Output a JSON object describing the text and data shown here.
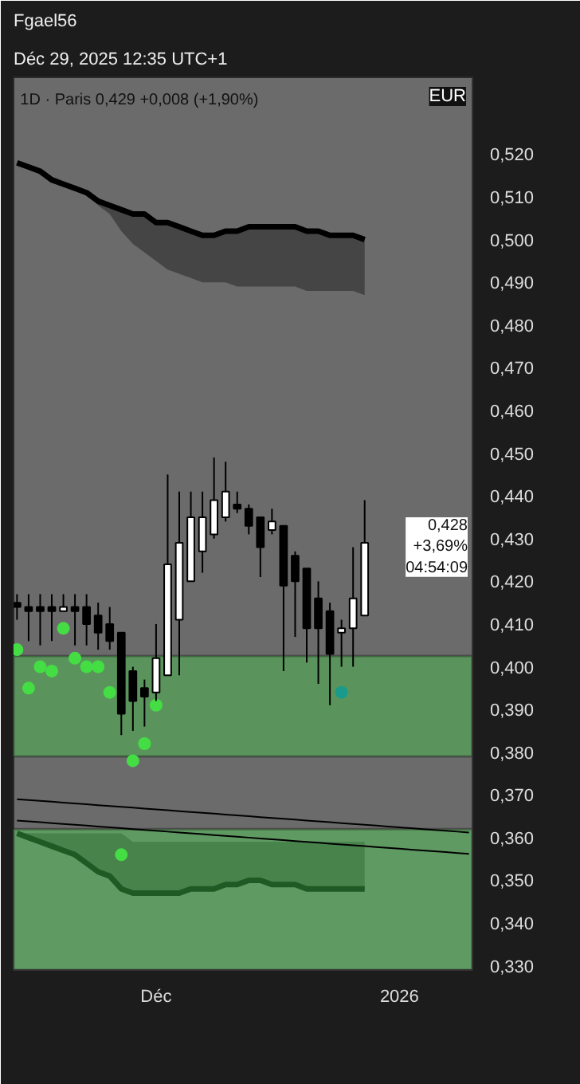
{
  "chart_data": {
    "type": "candlestick",
    "title": "Fgael56",
    "subtitle": "Déc 29, 2025 12:35 UTC+1",
    "ylabel": "EUR",
    "annotations": [
      "1D · Paris  0,429  +0,008 (+1,90%)",
      {
        "text": "0,428\n+3,69%\n04:54:09",
        "y": 0.428
      }
    ],
    "categories": [
      null,
      null,
      null,
      null,
      null,
      null,
      null,
      null,
      null,
      null,
      null,
      null,
      "Déc",
      null,
      null,
      null,
      null,
      null,
      null,
      null,
      null,
      null,
      null,
      null,
      null,
      null,
      null,
      null,
      null,
      null,
      null,
      null,
      null,
      "2026",
      null,
      null,
      null,
      null,
      null,
      null
    ],
    "ohlc": [
      [
        0.415,
        0.417,
        0.411,
        0.414
      ],
      [
        0.414,
        0.417,
        0.406,
        0.413
      ],
      [
        0.414,
        0.417,
        0.405,
        0.413
      ],
      [
        0.414,
        0.417,
        0.406,
        0.413
      ],
      [
        0.413,
        0.417,
        0.413,
        0.414
      ],
      [
        0.414,
        0.417,
        0.405,
        0.413
      ],
      [
        0.414,
        0.417,
        0.405,
        0.41
      ],
      [
        0.412,
        0.415,
        0.404,
        0.408
      ],
      [
        0.41,
        0.414,
        0.404,
        0.406
      ],
      [
        0.408,
        0.408,
        0.384,
        0.389
      ],
      [
        0.399,
        0.4,
        0.385,
        0.392
      ],
      [
        0.395,
        0.397,
        0.386,
        0.393
      ],
      [
        0.394,
        0.41,
        0.392,
        0.402
      ],
      [
        0.398,
        0.445,
        0.398,
        0.424
      ],
      [
        0.411,
        0.441,
        0.398,
        0.429
      ],
      [
        0.42,
        0.441,
        0.42,
        0.435
      ],
      [
        0.427,
        0.441,
        0.422,
        0.435
      ],
      [
        0.431,
        0.449,
        0.43,
        0.439
      ],
      [
        0.435,
        0.448,
        0.434,
        0.441
      ],
      [
        0.438,
        0.441,
        0.436,
        0.437
      ],
      [
        0.437,
        0.438,
        0.431,
        0.433
      ],
      [
        0.435,
        0.435,
        0.421,
        0.428
      ],
      [
        0.432,
        0.437,
        0.431,
        0.434
      ],
      [
        0.433,
        0.433,
        0.399,
        0.419
      ],
      [
        0.426,
        0.427,
        0.407,
        0.42
      ],
      [
        0.423,
        0.423,
        0.401,
        0.409
      ],
      [
        0.416,
        0.42,
        0.396,
        0.409
      ],
      [
        0.413,
        0.415,
        0.391,
        0.403
      ],
      [
        0.408,
        0.411,
        0.4,
        0.409
      ],
      [
        0.409,
        0.428,
        0.4,
        0.416
      ],
      [
        0.412,
        0.439,
        0.412,
        0.429
      ],
      null,
      null,
      null,
      null,
      null,
      null,
      null,
      null,
      null
    ],
    "colors": [
      "#000000",
      "#000000",
      "#000000",
      "#000000",
      "#ffffff",
      "#000000",
      "#000000",
      "#000000",
      "#000000",
      "#000000",
      "#000000",
      "#000000",
      "#ffffff",
      "#ffffff",
      "#ffffff",
      "#ffffff",
      "#ffffff",
      "#ffffff",
      "#ffffff",
      "#000000",
      "#000000",
      "#000000",
      "#ffffff",
      "#000000",
      "#000000",
      "#000000",
      "#000000",
      "#000000",
      "#ffffff",
      "#ffffff",
      "#ffffff",
      null,
      null,
      null,
      null,
      null,
      null,
      null,
      null,
      null
    ],
    "series": [
      {
        "type": "line",
        "color": "#000000",
        "values": [
          0.518,
          0.517,
          0.516,
          0.514,
          0.513,
          0.512,
          0.511,
          0.509,
          0.508,
          0.507,
          0.506,
          0.506,
          0.504,
          0.504,
          0.503,
          0.502,
          0.501,
          0.501,
          0.502,
          0.502,
          0.503,
          0.503,
          0.503,
          0.503,
          0.503,
          0.502,
          0.502,
          0.501,
          0.501,
          0.501,
          0.5,
          null,
          null,
          null,
          null,
          null,
          null,
          null,
          null,
          null
        ],
        "upper": [
          0.518,
          0.517,
          0.516,
          0.514,
          0.513,
          0.512,
          0.511,
          0.509,
          0.508,
          0.507,
          0.506,
          0.506,
          0.504,
          0.504,
          0.503,
          0.502,
          0.501,
          0.501,
          0.502,
          0.502,
          0.503,
          0.503,
          0.503,
          0.503,
          0.503,
          0.502,
          0.502,
          0.501,
          0.501,
          0.501,
          0.5,
          null,
          null,
          null,
          null,
          null,
          null,
          null,
          null,
          null
        ],
        "lower": [
          0.518,
          0.517,
          0.516,
          0.514,
          0.513,
          0.512,
          0.511,
          0.508,
          0.506,
          0.502,
          0.499,
          0.497,
          0.495,
          0.493,
          0.492,
          0.491,
          0.49,
          0.49,
          0.49,
          0.489,
          0.489,
          0.489,
          0.489,
          0.489,
          0.489,
          0.488,
          0.488,
          0.488,
          0.488,
          0.488,
          0.487,
          null,
          null,
          null,
          null,
          null,
          null,
          null,
          null,
          null
        ]
      },
      {
        "type": "line",
        "color": "#1f5a24",
        "values": [
          0.361,
          0.36,
          0.359,
          0.358,
          0.357,
          0.356,
          0.354,
          0.352,
          0.351,
          0.348,
          0.347,
          0.347,
          0.347,
          0.347,
          0.347,
          0.348,
          0.348,
          0.348,
          0.349,
          0.349,
          0.35,
          0.35,
          0.349,
          0.349,
          0.349,
          0.348,
          0.348,
          0.348,
          0.348,
          0.348,
          0.348,
          null,
          null,
          null,
          null,
          null,
          null,
          null,
          null,
          null
        ],
        "lower": [
          0.361,
          0.36,
          0.359,
          0.358,
          0.357,
          0.356,
          0.354,
          0.352,
          0.351,
          0.348,
          0.347,
          0.347,
          0.347,
          0.347,
          0.347,
          0.348,
          0.348,
          0.348,
          0.349,
          0.349,
          0.35,
          0.35,
          0.349,
          0.349,
          0.349,
          0.348,
          0.348,
          0.348,
          0.348,
          0.348,
          0.348,
          null,
          null,
          null,
          null,
          null,
          null,
          null,
          null,
          null
        ],
        "upper": [
          0.361,
          0.361,
          0.361,
          0.361,
          0.361,
          0.361,
          0.361,
          0.361,
          0.361,
          0.361,
          0.359,
          0.359,
          0.359,
          0.359,
          0.359,
          0.359,
          0.359,
          0.359,
          0.359,
          0.359,
          0.359,
          0.359,
          0.359,
          0.359,
          0.359,
          0.359,
          0.359,
          0.359,
          0.359,
          0.359,
          0.359,
          null,
          null,
          null,
          null,
          null,
          null,
          null,
          null,
          null
        ]
      },
      {
        "type": "line",
        "color": "#000000",
        "values": [
          0.369,
          0.3688,
          0.3686,
          0.3684,
          0.3682,
          0.368,
          0.3678,
          0.3676,
          0.3674,
          0.3672,
          0.367,
          0.3668,
          0.3666,
          0.3664,
          0.3662,
          0.366,
          0.3658,
          0.3656,
          0.3654,
          0.3652,
          0.365,
          0.3648,
          0.3646,
          0.3644,
          0.3642,
          0.364,
          0.3638,
          0.3636,
          0.3634,
          0.3632,
          0.363,
          0.3628,
          0.3626,
          0.3624,
          0.3622,
          0.362,
          0.3618,
          0.3616,
          0.3614,
          0.3612
        ]
      },
      {
        "type": "line",
        "color": "#000000",
        "values": [
          0.364,
          0.3638,
          0.3636,
          0.3634,
          0.3632,
          0.363,
          0.3628,
          0.3626,
          0.3624,
          0.3622,
          0.362,
          0.3618,
          0.3616,
          0.3614,
          0.3612,
          0.361,
          0.3608,
          0.3606,
          0.3604,
          0.3602,
          0.36,
          0.3598,
          0.3596,
          0.3594,
          0.3592,
          0.359,
          0.3588,
          0.3586,
          0.3584,
          0.3582,
          0.358,
          0.3578,
          0.3576,
          0.3574,
          0.3572,
          0.357,
          0.3568,
          0.3566,
          0.3564,
          0.3562
        ]
      },
      {
        "type": "scatter",
        "colors": [
          "#44dd44",
          "#44dd44",
          "#44dd44",
          "#44dd44",
          "#44dd44",
          "#44dd44",
          "#44dd44",
          "#44dd44",
          "#44dd44",
          "#44dd44",
          "#44dd44",
          "#44dd44",
          "#44dd44",
          null,
          null,
          null,
          null,
          null,
          null,
          null,
          null,
          null,
          null,
          null,
          null,
          null,
          null,
          null,
          "#1a9a8a",
          null,
          null,
          null,
          null,
          null,
          null,
          null,
          null,
          null,
          null,
          null
        ],
        "values": [
          0.404,
          0.395,
          0.4,
          0.399,
          0.409,
          0.402,
          0.4,
          0.4,
          0.394,
          0.356,
          0.378,
          0.382,
          0.391,
          null,
          null,
          null,
          null,
          null,
          null,
          null,
          null,
          null,
          null,
          null,
          null,
          null,
          null,
          null,
          0.394,
          null,
          null,
          null,
          null,
          null,
          null,
          null,
          null,
          null,
          null,
          null
        ]
      }
    ],
    "bands": [
      {
        "axis": "y",
        "from": 0.379,
        "to": 0.4025,
        "color": "#5a945c"
      },
      {
        "axis": "y",
        "from": 0.329,
        "to": 0.362,
        "color": "#5f9a62"
      }
    ],
    "ylim": [
      0.329,
      0.538
    ],
    "yticks": [
      {
        "value": 0.33,
        "label": "0,330"
      },
      {
        "value": 0.34,
        "label": "0,340"
      },
      {
        "value": 0.35,
        "label": "0,350"
      },
      {
        "value": 0.36,
        "label": "0,360"
      },
      {
        "value": 0.37,
        "label": "0,370"
      },
      {
        "value": 0.38,
        "label": "0,380"
      },
      {
        "value": 0.39,
        "label": "0,390"
      },
      {
        "value": 0.4,
        "label": "0,400"
      },
      {
        "value": 0.41,
        "label": "0,410"
      },
      {
        "value": 0.42,
        "label": "0,420"
      },
      {
        "value": 0.43,
        "label": "0,430"
      },
      {
        "value": 0.44,
        "label": "0,440"
      },
      {
        "value": 0.45,
        "label": "0,450"
      },
      {
        "value": 0.46,
        "label": "0,460"
      },
      {
        "value": 0.47,
        "label": "0,470"
      },
      {
        "value": 0.48,
        "label": "0,480"
      },
      {
        "value": 0.49,
        "label": "0,490"
      },
      {
        "value": 0.5,
        "label": "0,500"
      },
      {
        "value": 0.51,
        "label": "0,510"
      },
      {
        "value": 0.52,
        "label": "0,520"
      }
    ]
  }
}
